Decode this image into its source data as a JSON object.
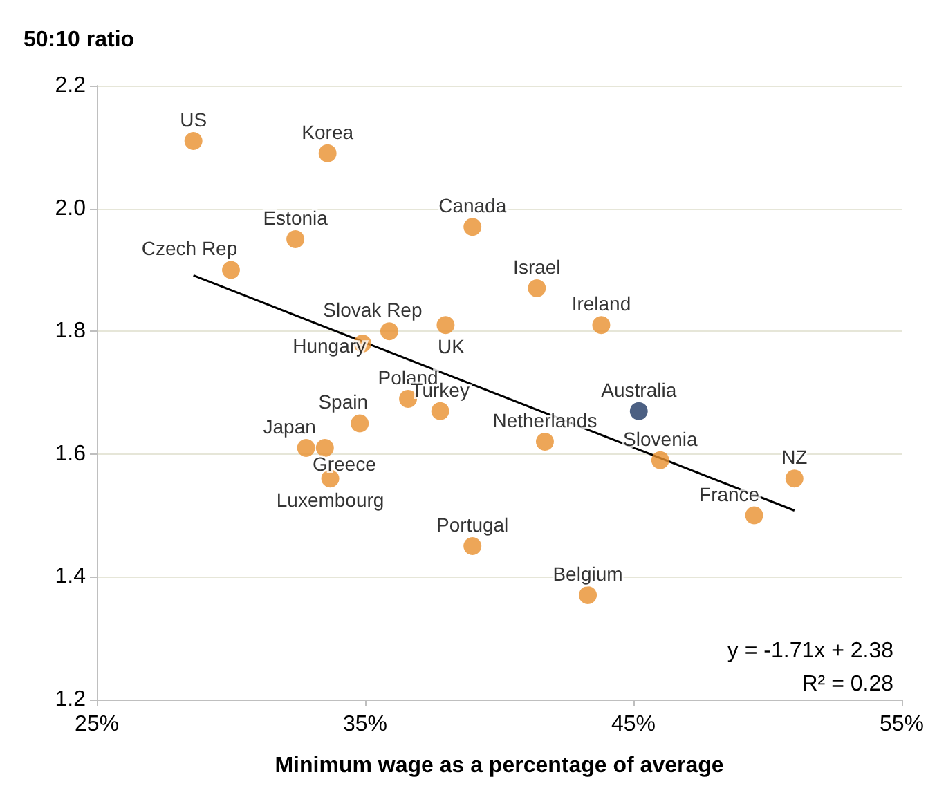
{
  "chart_data": {
    "type": "scatter",
    "ylabel": "50:10 ratio",
    "xlabel": "Minimum wage as a percentage of average",
    "xlim": [
      25,
      55
    ],
    "xticks": [
      {
        "value": 25,
        "label": "25%"
      },
      {
        "value": 35,
        "label": "35%"
      },
      {
        "value": 45,
        "label": "45%"
      },
      {
        "value": 55,
        "label": "55%"
      }
    ],
    "ylim": [
      1.2,
      2.2
    ],
    "yticks": [
      {
        "value": 1.2,
        "label": "1.2"
      },
      {
        "value": 1.4,
        "label": "1.4"
      },
      {
        "value": 1.6,
        "label": "1.6"
      },
      {
        "value": 1.8,
        "label": "1.8"
      },
      {
        "value": 2.0,
        "label": "2.0"
      },
      {
        "value": 2.2,
        "label": "2.2"
      }
    ],
    "grid": "y",
    "marker": "circle",
    "annotations": [
      "y = -1.71x + 2.38",
      "R² = 0.28"
    ],
    "series": [
      {
        "x": [
          28.6,
          33.6,
          32.4,
          39.0,
          30.0,
          41.4,
          43.8,
          35.9,
          38.0,
          34.9,
          36.6,
          37.8,
          34.8,
          45.2,
          32.8,
          33.5,
          41.7,
          46.0,
          51.0,
          33.7,
          49.5,
          39.0,
          43.3
        ],
        "values": [
          2.11,
          2.09,
          1.95,
          1.97,
          1.9,
          1.87,
          1.81,
          1.8,
          1.81,
          1.78,
          1.69,
          1.67,
          1.65,
          1.67,
          1.61,
          1.61,
          1.62,
          1.59,
          1.56,
          1.56,
          1.5,
          1.45,
          1.37
        ],
        "colors": [
          "#e8902e",
          "#e8902e",
          "#e8902e",
          "#e8902e",
          "#e8902e",
          "#e8902e",
          "#e8902e",
          "#e8902e",
          "#e8902e",
          "#e8902e",
          "#e8902e",
          "#e8902e",
          "#e8902e",
          "#1f3864",
          "#e8902e",
          "#e8902e",
          "#e8902e",
          "#e8902e",
          "#e8902e",
          "#e8902e",
          "#e8902e",
          "#e8902e",
          "#e8902e"
        ],
        "value_labels": [
          "US",
          "Korea",
          "Estonia",
          "Canada",
          "Czech Rep",
          "Israel",
          "Ireland",
          "Slovak Rep",
          "UK",
          "Hungary",
          "Poland",
          "Turkey",
          "Spain",
          "Australia",
          "Japan",
          "Greece",
          "Netherlands",
          "Slovenia",
          "NZ",
          "Luxembourg",
          "France",
          "Portugal",
          "Belgium"
        ]
      },
      {
        "type": "line",
        "x": [
          28.6,
          51.0
        ],
        "values": [
          1.891,
          1.508
        ],
        "color": "#000000",
        "marker": "none"
      }
    ]
  }
}
